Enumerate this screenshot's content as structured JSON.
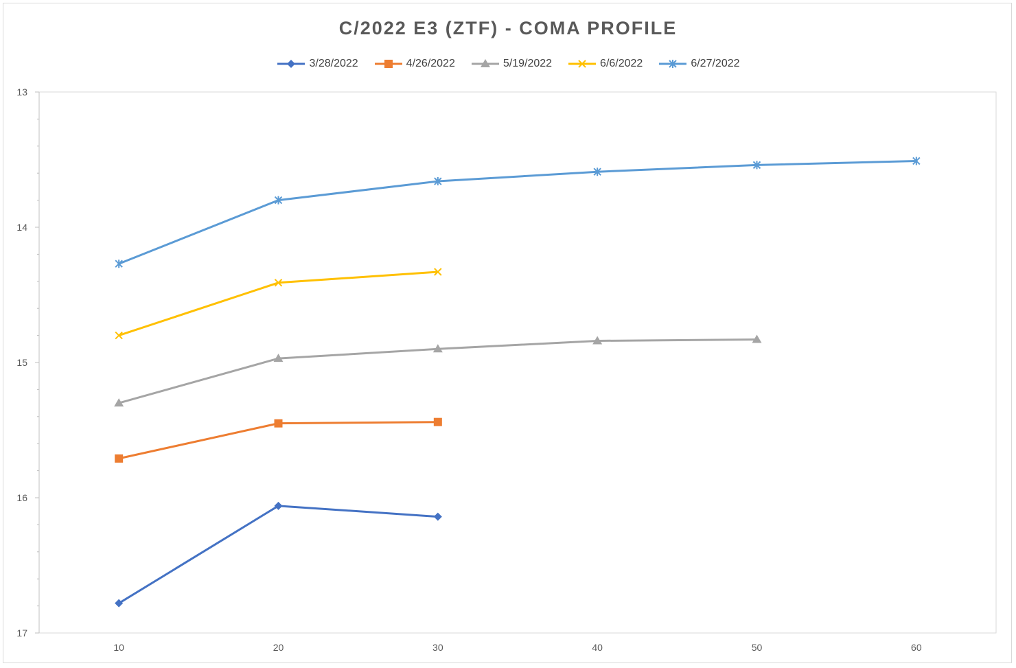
{
  "chart_data": {
    "type": "line",
    "title": "C/2022 E3 (ZTF) - COMA PROFILE",
    "xlabel": "",
    "ylabel": "",
    "x_ticks": [
      10,
      20,
      30,
      40,
      50,
      60
    ],
    "y_ticks": [
      13,
      14,
      15,
      16,
      17
    ],
    "xlim": [
      5,
      65
    ],
    "ylim": [
      13,
      17
    ],
    "y_reversed": true,
    "grid": false,
    "legend_position": "top",
    "series": [
      {
        "name": "3/28/2022",
        "color": "#4472c4",
        "marker": "diamond",
        "x": [
          10,
          20,
          30
        ],
        "y": [
          16.78,
          16.06,
          16.14
        ]
      },
      {
        "name": "4/26/2022",
        "color": "#ed7d31",
        "marker": "square",
        "x": [
          10,
          20,
          30
        ],
        "y": [
          15.71,
          15.45,
          15.44
        ]
      },
      {
        "name": "5/19/2022",
        "color": "#a5a5a5",
        "marker": "triangle",
        "x": [
          10,
          20,
          30,
          40,
          50
        ],
        "y": [
          15.3,
          14.97,
          14.9,
          14.84,
          14.83
        ]
      },
      {
        "name": "6/6/2022",
        "color": "#ffc000",
        "marker": "x",
        "x": [
          10,
          20,
          30
        ],
        "y": [
          14.8,
          14.41,
          14.33
        ]
      },
      {
        "name": "6/27/2022",
        "color": "#5b9bd5",
        "marker": "star",
        "x": [
          10,
          20,
          30,
          40,
          50,
          60
        ],
        "y": [
          14.27,
          13.8,
          13.66,
          13.59,
          13.54,
          13.51
        ]
      }
    ]
  }
}
